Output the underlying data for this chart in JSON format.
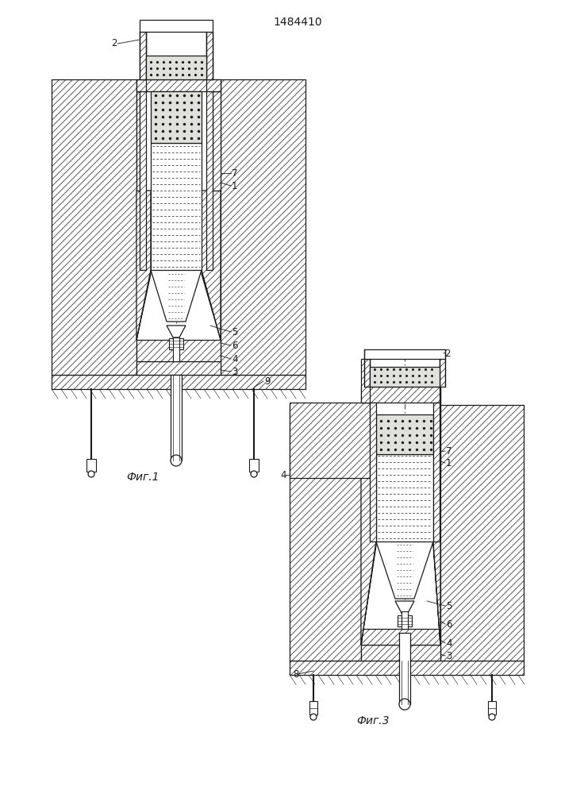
{
  "title": "1484410",
  "fig1_label": "Фиг.1",
  "fig3_label": "Фиг.3",
  "bg": "#ffffff",
  "lc": "#1a1a1a",
  "lw": 0.9
}
